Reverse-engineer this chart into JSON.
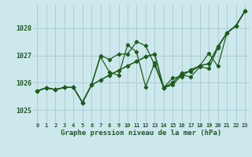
{
  "title": "Graphe pression niveau de la mer (hPa)",
  "background_color": "#cce8ec",
  "grid_color": "#aacdd4",
  "line_color": "#1e5c1e",
  "marker_color": "#1e5c1e",
  "ylim": [
    1024.55,
    1028.85
  ],
  "xlim": [
    -0.5,
    23.5
  ],
  "yticks": [
    1025,
    1026,
    1027,
    1028
  ],
  "xticks": [
    0,
    1,
    2,
    3,
    4,
    5,
    6,
    7,
    8,
    9,
    10,
    11,
    12,
    13,
    14,
    15,
    16,
    17,
    18,
    19,
    20,
    21,
    22,
    23
  ],
  "series": {
    "s1_straight": [
      1025.7,
      1025.82,
      1025.75,
      1025.83,
      1025.83,
      1025.28,
      1025.92,
      1026.1,
      1026.28,
      1026.45,
      1026.62,
      1026.78,
      1026.95,
      1027.05,
      1025.82,
      1026.0,
      1026.35,
      1026.42,
      1026.62,
      1026.7,
      1027.32,
      1027.82,
      1028.08,
      1028.62
    ],
    "s2_zigzag_high": [
      1025.7,
      1025.82,
      1025.75,
      1025.83,
      1025.83,
      1025.28,
      1025.92,
      1027.0,
      1026.85,
      1027.05,
      1027.05,
      1027.5,
      1027.35,
      1026.65,
      1025.82,
      1025.92,
      1026.28,
      1026.22,
      1026.58,
      1026.52,
      1027.28,
      1027.82,
      1028.08,
      1028.62
    ],
    "s3_zigzag_mid": [
      1025.7,
      1025.82,
      1025.75,
      1025.83,
      1025.83,
      1025.28,
      1025.92,
      1026.95,
      1026.38,
      1026.28,
      1027.38,
      1027.12,
      1025.85,
      1026.72,
      1025.82,
      1026.18,
      1026.22,
      1026.48,
      1026.62,
      1027.08,
      1026.6,
      1027.82,
      1028.08,
      1028.62
    ],
    "s4_lower": [
      1025.7,
      1025.82,
      1025.75,
      1025.83,
      1025.83,
      1025.28,
      1025.92,
      1026.1,
      1026.28,
      1026.45,
      1026.62,
      1026.78,
      1026.95,
      1027.05,
      1025.82,
      1026.0,
      1026.35,
      1026.42,
      1026.62,
      1026.7,
      1027.32,
      1027.82,
      1028.08,
      1028.62
    ]
  }
}
